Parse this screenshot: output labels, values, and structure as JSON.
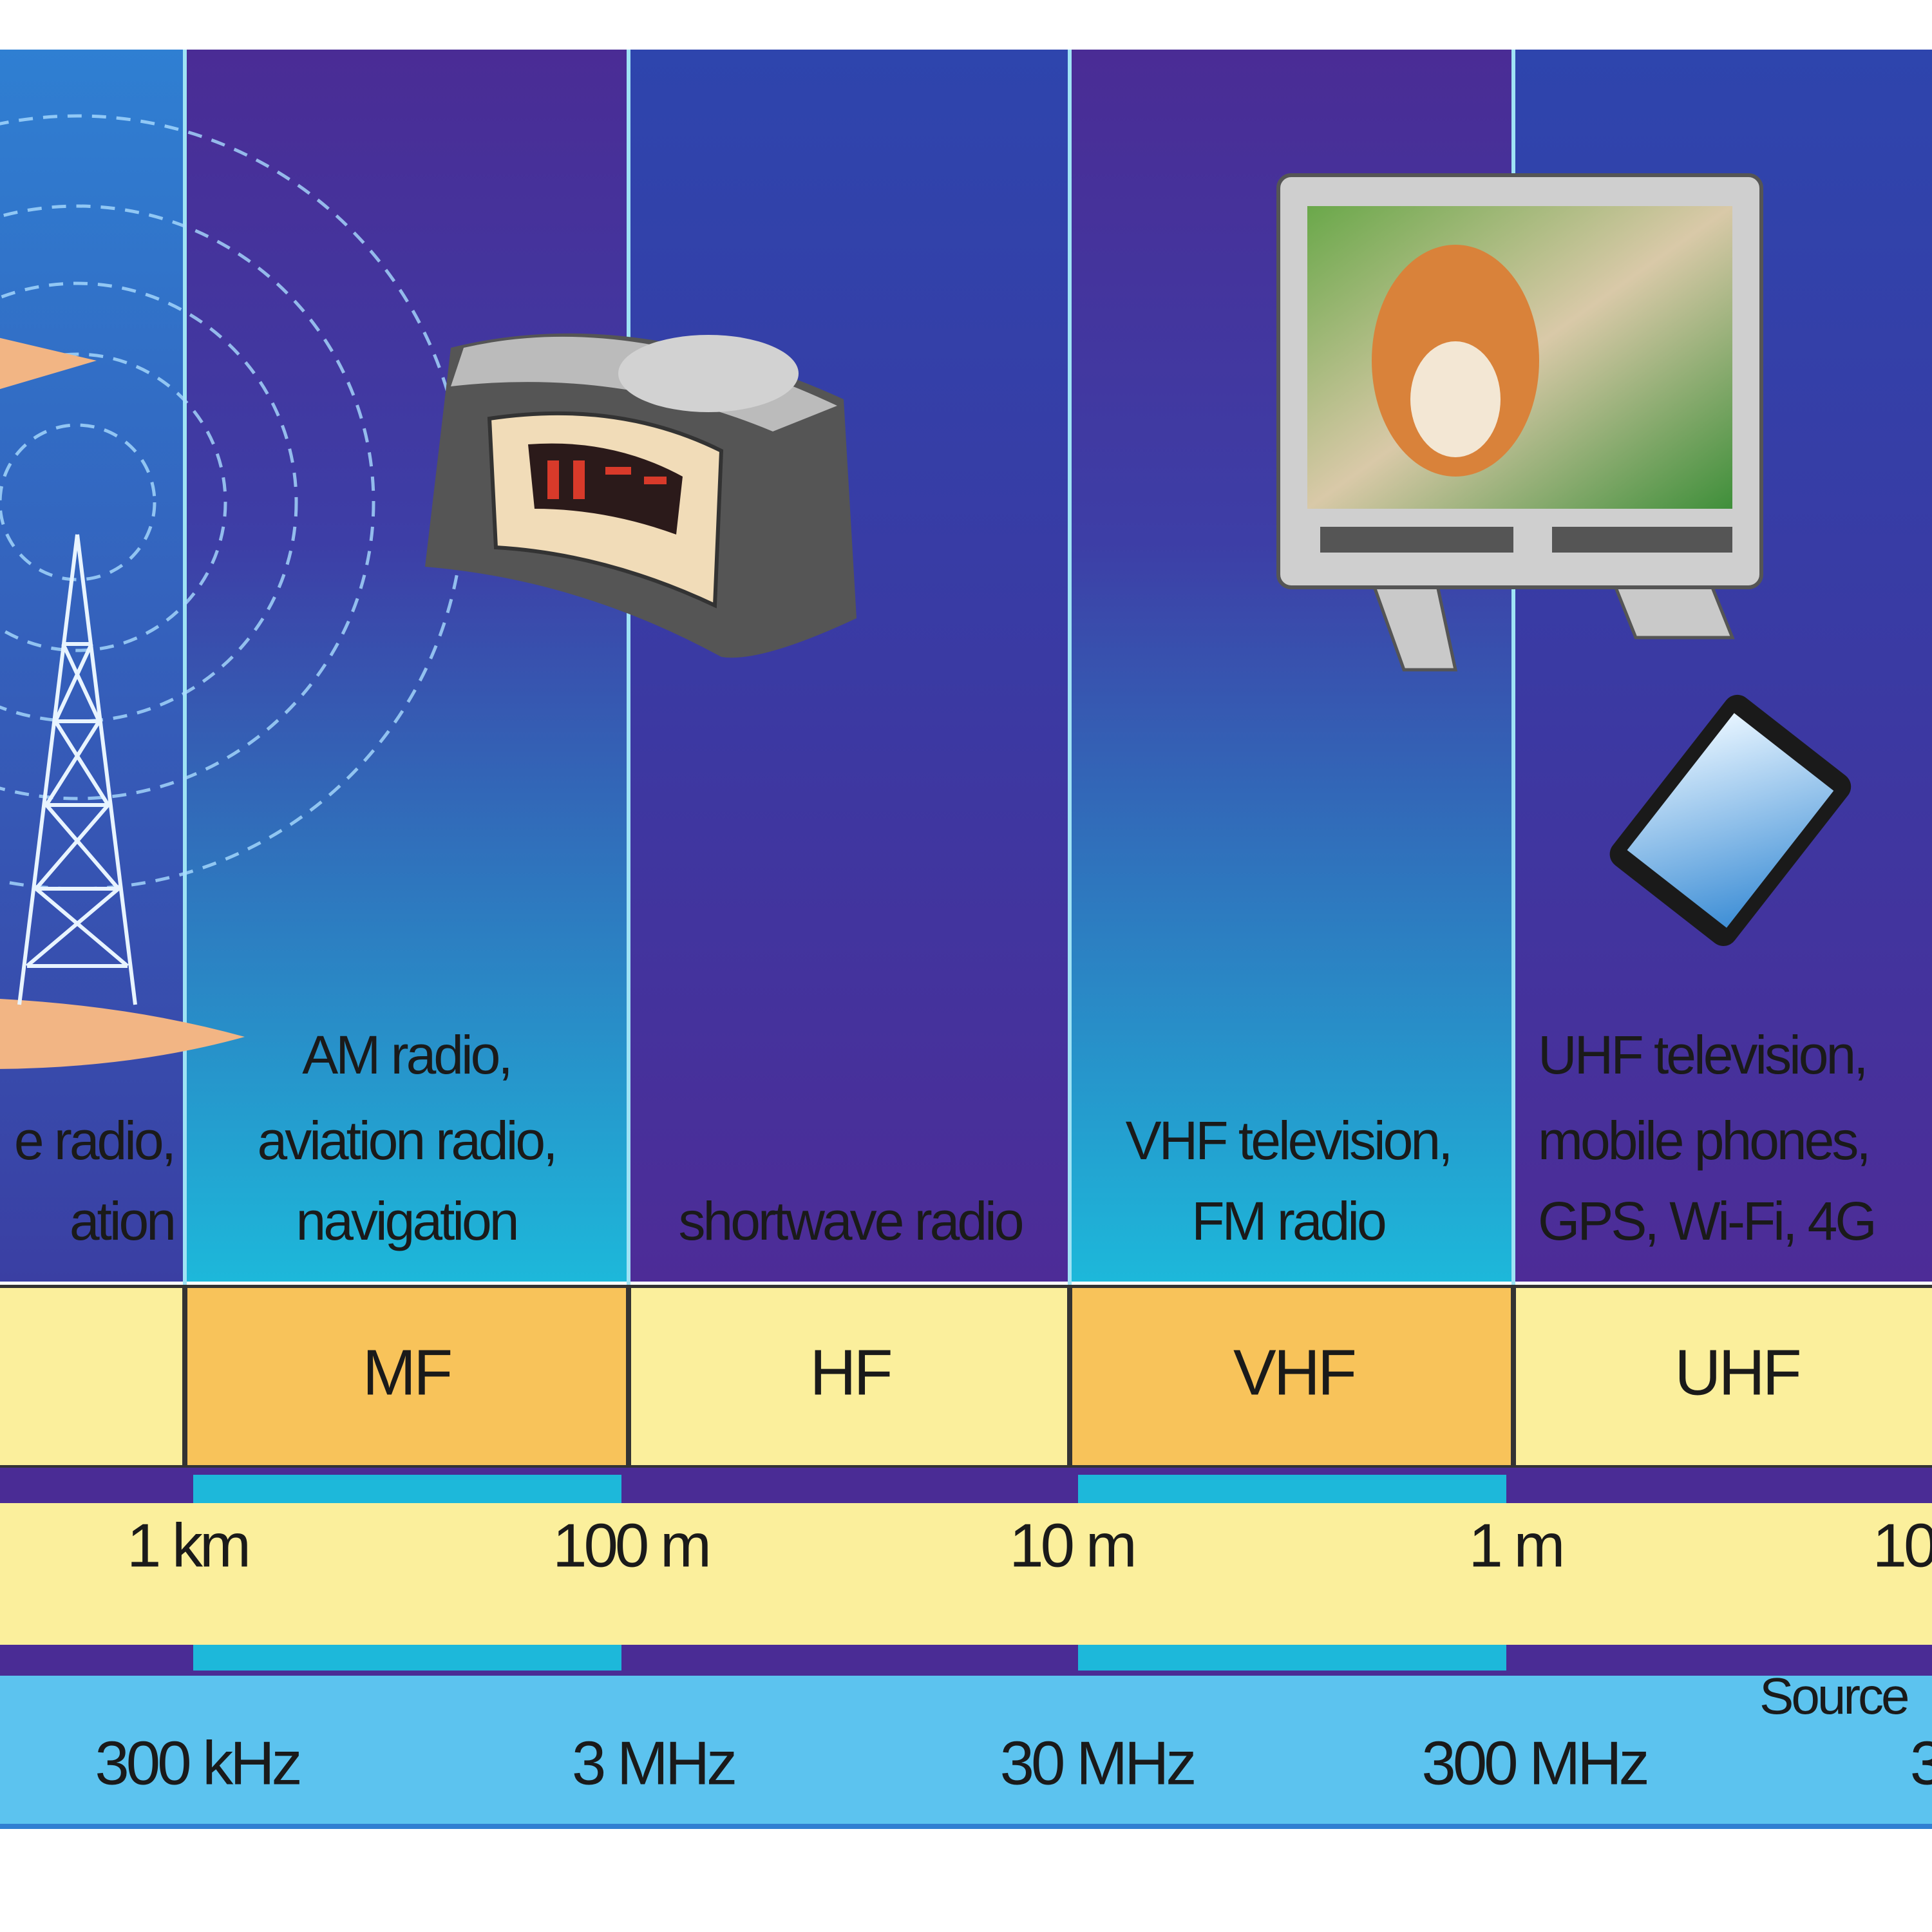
{
  "bands": [
    {
      "uses": [
        "e radio,",
        "ation"
      ]
    },
    {
      "name": "MF",
      "uses": [
        "AM radio,",
        "aviation radio,",
        "navigation"
      ]
    },
    {
      "name": "HF",
      "uses": [
        "shortwave radio"
      ]
    },
    {
      "name": "VHF",
      "uses": [
        "VHF television,",
        "FM radio"
      ]
    },
    {
      "name": "UHF",
      "uses": [
        "UHF television,",
        "mobile phones,",
        "GPS, Wi-Fi, 4G"
      ]
    }
  ],
  "wavelengths": [
    "1 km",
    "100 m",
    "10 m",
    "1 m",
    "10"
  ],
  "frequencies": [
    "300 kHz",
    "3 MHz",
    "30 MHz",
    "300 MHz",
    "3"
  ],
  "source": "Source"
}
